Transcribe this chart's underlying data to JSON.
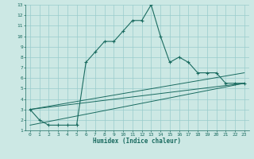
{
  "xlabel": "Humidex (Indice chaleur)",
  "bg_color": "#cce8e4",
  "grid_color": "#99cccc",
  "line_color": "#1a6b60",
  "xlim": [
    -0.5,
    23.5
  ],
  "ylim": [
    1,
    13
  ],
  "xticks": [
    0,
    1,
    2,
    3,
    4,
    5,
    6,
    7,
    8,
    9,
    10,
    11,
    12,
    13,
    14,
    15,
    16,
    17,
    18,
    19,
    20,
    21,
    22,
    23
  ],
  "yticks": [
    1,
    2,
    3,
    4,
    5,
    6,
    7,
    8,
    9,
    10,
    11,
    12,
    13
  ],
  "main_x": [
    0,
    1,
    2,
    3,
    4,
    5,
    6,
    7,
    8,
    9,
    10,
    11,
    12,
    13,
    14,
    15,
    16,
    17,
    18,
    19,
    20,
    21,
    22,
    23
  ],
  "main_y": [
    3,
    2,
    1.5,
    1.5,
    1.5,
    1.5,
    7.5,
    8.5,
    9.5,
    9.5,
    10.5,
    11.5,
    11.5,
    13,
    10,
    7.5,
    8,
    7.5,
    6.5,
    6.5,
    6.5,
    5.5,
    5.5,
    5.5
  ],
  "line1_x": [
    0,
    23
  ],
  "line1_y": [
    3,
    6.5
  ],
  "line2_x": [
    0,
    23
  ],
  "line2_y": [
    3,
    5.5
  ],
  "line3_x": [
    0,
    23
  ],
  "line3_y": [
    1.5,
    5.5
  ],
  "figwidth": 3.2,
  "figheight": 2.0,
  "dpi": 100
}
